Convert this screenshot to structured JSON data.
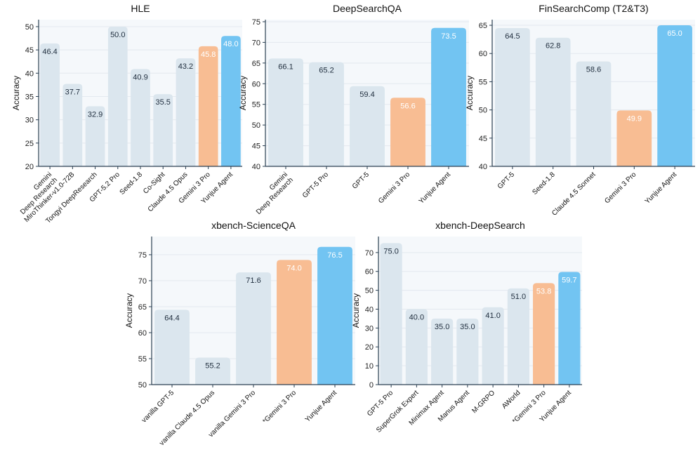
{
  "colors": {
    "baseline_bar": "#dbe6ee",
    "gemini_bar": "#f8bd93",
    "yunjue_bar": "#72c4f2",
    "plot_bg": "#f5f8fb",
    "grid": "#e3e9ef",
    "axis": "#2a3f52",
    "label_dark": "#1f2d3d",
    "label_light": "#ffffff"
  },
  "chart_data": [
    {
      "type": "bar",
      "title": "HLE",
      "ylabel": "Accuracy",
      "ylim": [
        20,
        51.5
      ],
      "yticks": [
        20,
        25,
        30,
        35,
        40,
        45,
        50
      ],
      "grid": true,
      "categories": [
        "Gemini\nDeep Research",
        "MiroThinker-v1.0-72B",
        "Tongyi DeepResearch",
        "GPT-5.2 Pro",
        "Seed-1.8",
        "Co-Sight",
        "Claude 4.5 Opus",
        "Gemini 3 Pro",
        "Yunjue Agent"
      ],
      "values": [
        46.4,
        37.7,
        32.9,
        50.0,
        40.9,
        35.5,
        43.2,
        45.8,
        48.0
      ],
      "value_labels": [
        "46.4",
        "37.7",
        "32.9",
        "50.0",
        "40.9",
        "35.5",
        "43.2",
        "45.8",
        "48.0"
      ],
      "bar_colors": [
        "baseline",
        "baseline",
        "baseline",
        "baseline",
        "baseline",
        "baseline",
        "baseline",
        "gemini",
        "yunjue"
      ]
    },
    {
      "type": "bar",
      "title": "DeepSearchQA",
      "ylabel": "Accuracy",
      "ylim": [
        40,
        75.5
      ],
      "yticks": [
        40,
        45,
        50,
        55,
        60,
        65,
        70,
        75
      ],
      "grid": true,
      "categories": [
        "Gemini\nDeep Research",
        "GPT-5 Pro",
        "GPT-5",
        "Gemini 3 Pro",
        "Yunjue Agent"
      ],
      "values": [
        66.1,
        65.2,
        59.4,
        56.6,
        73.5
      ],
      "value_labels": [
        "66.1",
        "65.2",
        "59.4",
        "56.6",
        "73.5"
      ],
      "bar_colors": [
        "baseline",
        "baseline",
        "baseline",
        "gemini",
        "yunjue"
      ]
    },
    {
      "type": "bar",
      "title": "FinSearchComp (T2&T3)",
      "ylabel": "Accuracy",
      "ylim": [
        40,
        66
      ],
      "yticks": [
        40,
        45,
        50,
        55,
        60,
        65
      ],
      "grid": true,
      "categories": [
        "GPT-5",
        "Seed-1.8",
        "Claude 4.5 Sonnet",
        "Gemini 3 Pro",
        "Yunjue Agent"
      ],
      "values": [
        64.5,
        62.8,
        58.6,
        49.9,
        65.0
      ],
      "value_labels": [
        "64.5",
        "62.8",
        "58.6",
        "49.9",
        "65.0"
      ],
      "bar_colors": [
        "baseline",
        "baseline",
        "baseline",
        "gemini",
        "yunjue"
      ]
    },
    {
      "type": "bar",
      "title": "xbench-ScienceQA",
      "ylabel": "Accuracy",
      "ylim": [
        50,
        78.5
      ],
      "yticks": [
        50,
        55,
        60,
        65,
        70,
        75
      ],
      "grid": true,
      "categories": [
        "vanilla GPT-5",
        "vanilla Claude 4.5 Opus",
        "vanilla Gemini 3 Pro",
        "*Gemini 3 Pro",
        "Yunjue Agent"
      ],
      "values": [
        64.4,
        55.2,
        71.6,
        74.0,
        76.5
      ],
      "value_labels": [
        "64.4",
        "55.2",
        "71.6",
        "74.0",
        "76.5"
      ],
      "bar_colors": [
        "baseline",
        "baseline",
        "baseline",
        "gemini",
        "yunjue"
      ]
    },
    {
      "type": "bar",
      "title": "xbench-DeepSearch",
      "ylabel": "Accuracy",
      "ylim": [
        0,
        78.5
      ],
      "yticks": [
        0,
        10,
        20,
        30,
        40,
        50,
        60,
        70
      ],
      "grid": true,
      "categories": [
        "GPT-5 Pro",
        "SuperGrok Expert",
        "Minimax Agent",
        "Manus Agent",
        "M-GRPO",
        "AWorld",
        "*Gemini 3 Pro",
        "Yunjue Agent"
      ],
      "values": [
        75.0,
        40.0,
        35.0,
        35.0,
        41.0,
        51.0,
        53.8,
        59.7
      ],
      "value_labels": [
        "75.0",
        "40.0",
        "35.0",
        "35.0",
        "41.0",
        "51.0",
        "53.8",
        "59.7"
      ],
      "bar_colors": [
        "baseline",
        "baseline",
        "baseline",
        "baseline",
        "baseline",
        "baseline",
        "gemini",
        "yunjue"
      ]
    }
  ]
}
